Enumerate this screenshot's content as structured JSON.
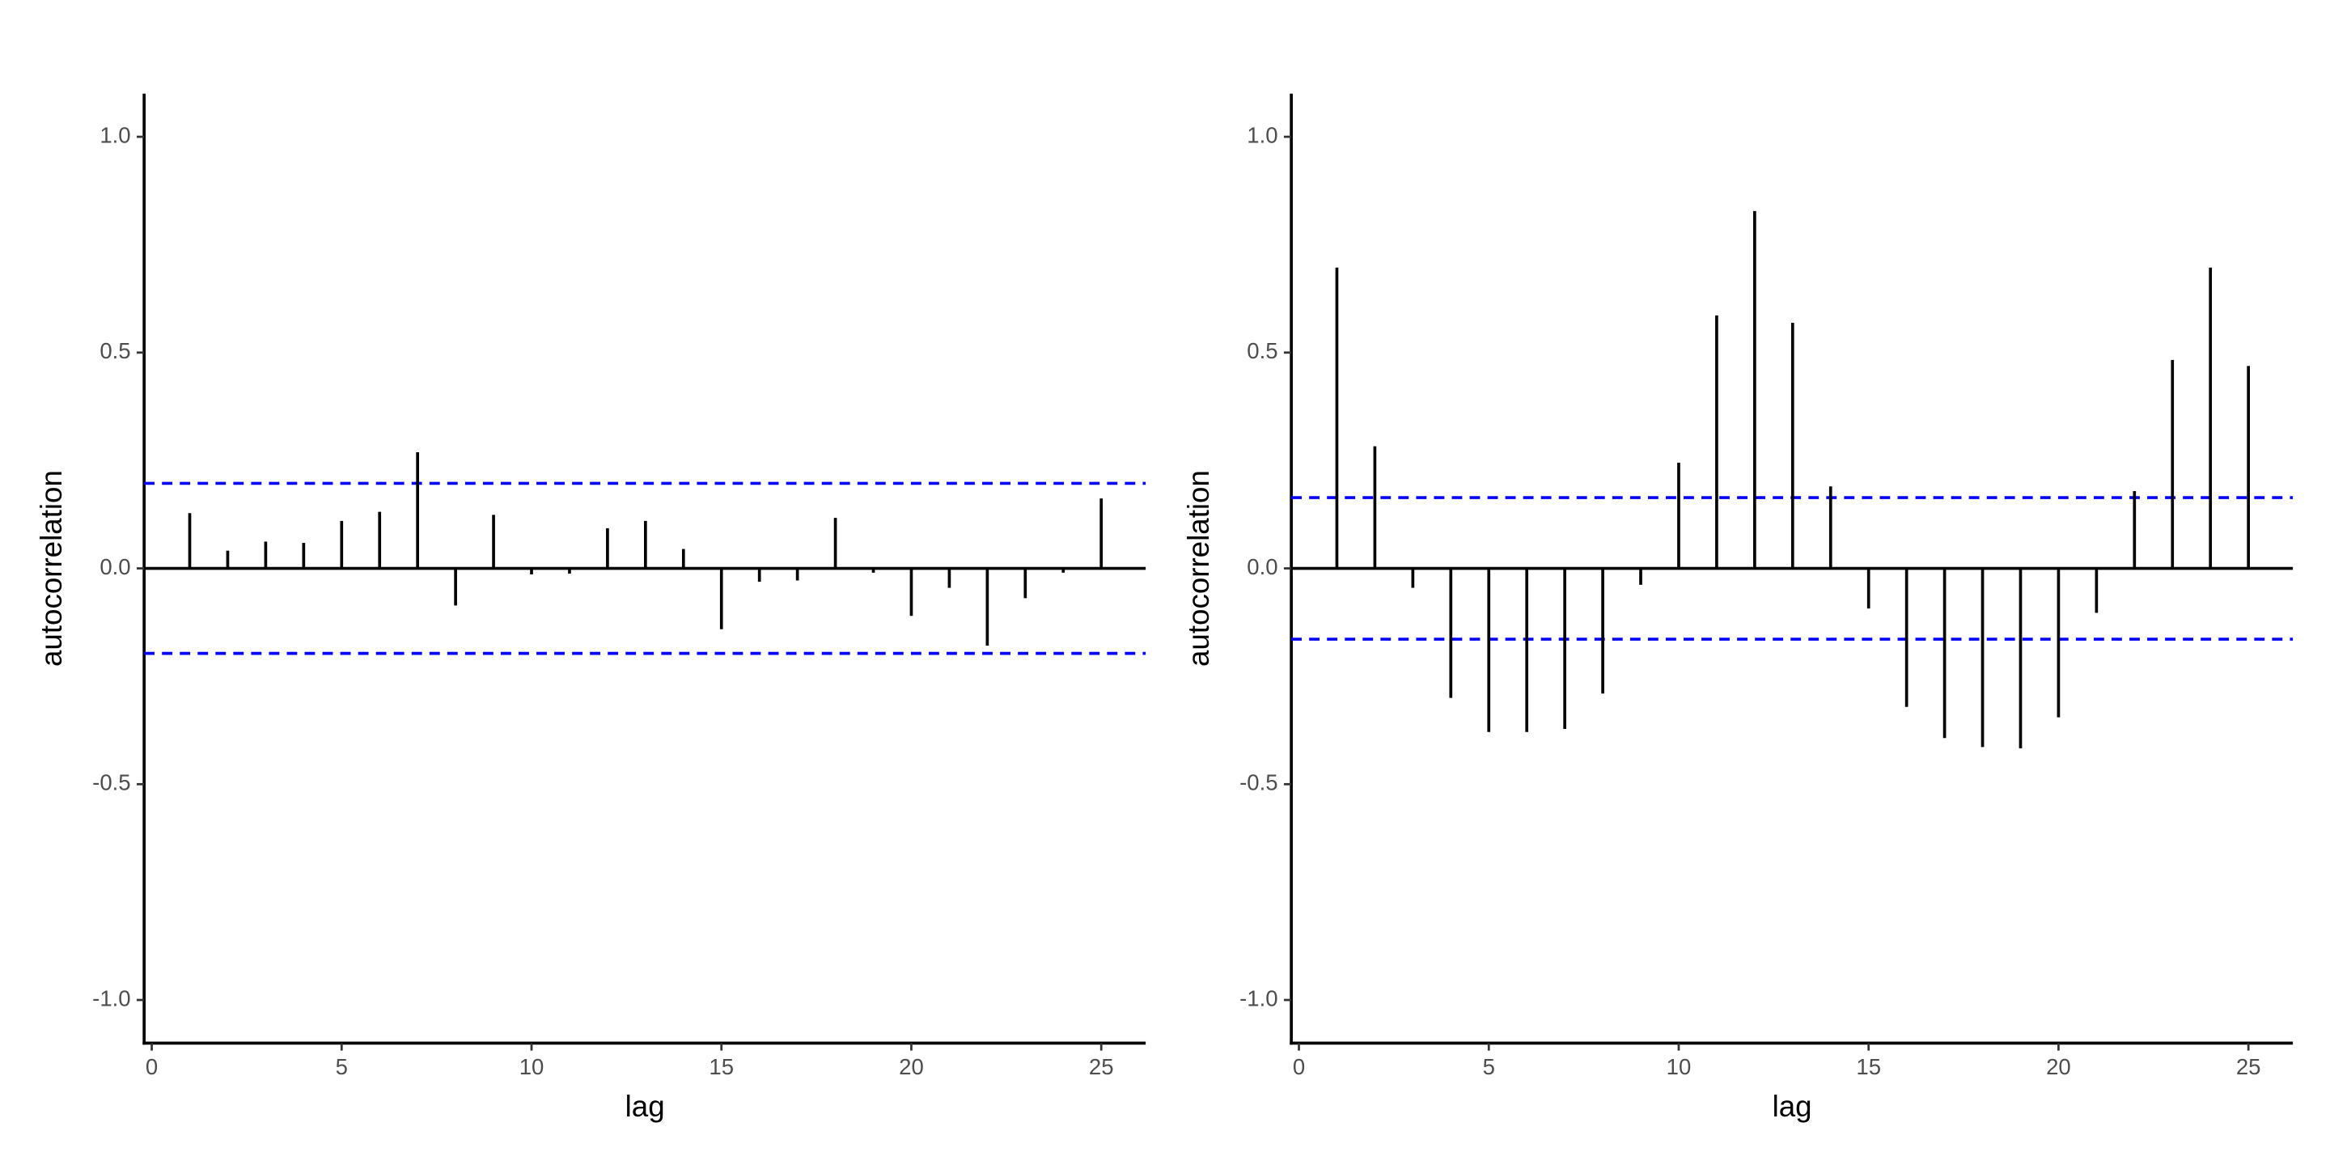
{
  "chart_data": [
    {
      "type": "stem",
      "xlabel": "lag",
      "ylabel": "autocorrelation",
      "x": [
        1,
        2,
        3,
        4,
        5,
        6,
        7,
        8,
        9,
        10,
        11,
        12,
        13,
        14,
        15,
        16,
        17,
        18,
        19,
        20,
        21,
        22,
        23,
        24,
        25
      ],
      "values": [
        0.128,
        0.041,
        0.062,
        0.059,
        0.11,
        0.131,
        0.269,
        -0.086,
        0.124,
        -0.014,
        -0.012,
        0.093,
        0.11,
        0.045,
        -0.141,
        -0.031,
        -0.028,
        0.117,
        -0.01,
        -0.11,
        -0.045,
        -0.179,
        -0.069,
        -0.01,
        0.162
      ],
      "color": "#000000",
      "bounds": [
        0.197,
        -0.197
      ],
      "bounds_color": "#0000ff",
      "xlim": [
        -0.2,
        26.17
      ],
      "ylim": [
        -1.1,
        1.1
      ],
      "xticks": [
        0,
        5,
        10,
        15,
        20,
        25
      ],
      "yticks": [
        {
          "value": 1,
          "label": "1.0"
        },
        {
          "value": 0.5,
          "label": "0.5"
        },
        {
          "value": 0,
          "label": "0.0"
        },
        {
          "value": -0.5,
          "label": "-0.5"
        },
        {
          "value": -1,
          "label": "-1.0"
        }
      ]
    },
    {
      "type": "stem",
      "xlabel": "lag",
      "ylabel": "autocorrelation",
      "x": [
        1,
        2,
        3,
        4,
        5,
        6,
        7,
        8,
        9,
        10,
        11,
        12,
        13,
        14,
        15,
        16,
        17,
        18,
        19,
        20,
        21,
        22,
        23,
        24,
        25
      ],
      "values": [
        0.697,
        0.283,
        -0.045,
        -0.3,
        -0.379,
        -0.379,
        -0.372,
        -0.29,
        -0.038,
        0.245,
        0.586,
        0.828,
        0.569,
        0.19,
        -0.093,
        -0.321,
        -0.393,
        -0.414,
        -0.417,
        -0.345,
        -0.103,
        0.179,
        0.483,
        0.697,
        0.469
      ],
      "color": "#000000",
      "bounds": [
        0.164,
        -0.164
      ],
      "bounds_color": "#0000ff",
      "xlim": [
        -0.2,
        26.17
      ],
      "ylim": [
        -1.1,
        1.1
      ],
      "xticks": [
        0,
        5,
        10,
        15,
        20,
        25
      ],
      "yticks": [
        {
          "value": 1,
          "label": "1.0"
        },
        {
          "value": 0.5,
          "label": "0.5"
        },
        {
          "value": 0,
          "label": "0.0"
        },
        {
          "value": -0.5,
          "label": "-0.5"
        },
        {
          "value": -1,
          "label": "-1.0"
        }
      ]
    }
  ]
}
